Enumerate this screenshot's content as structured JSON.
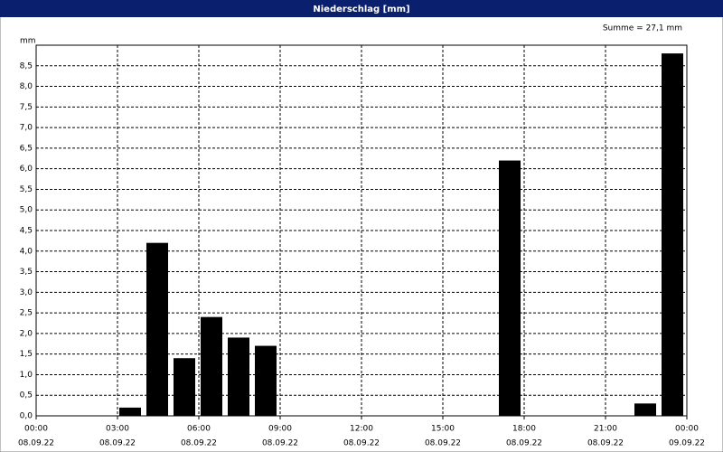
{
  "chart_data": {
    "type": "bar",
    "title": "Niederschlag [mm]",
    "y_unit": "mm",
    "annotation": "Summe = 27,1 mm",
    "x": [
      3,
      4,
      5,
      6,
      7,
      8,
      17,
      22,
      23
    ],
    "values": [
      0.2,
      4.2,
      1.4,
      2.4,
      1.9,
      1.7,
      6.2,
      0.3,
      8.8
    ],
    "color": "#000000",
    "xlim": [
      0,
      24
    ],
    "xticks": [
      {
        "value": 0,
        "label": "00:00"
      },
      {
        "value": 3,
        "label": "03:00"
      },
      {
        "value": 6,
        "label": "06:00"
      },
      {
        "value": 9,
        "label": "09:00"
      },
      {
        "value": 12,
        "label": "12:00"
      },
      {
        "value": 15,
        "label": "15:00"
      },
      {
        "value": 18,
        "label": "18:00"
      },
      {
        "value": 21,
        "label": "21:00"
      },
      {
        "value": 24,
        "label": "00:00"
      }
    ],
    "xtick_dates": [
      "08.09.22",
      "08.09.22",
      "08.09.22",
      "08.09.22",
      "08.09.22",
      "08.09.22",
      "08.09.22",
      "08.09.22",
      "09.09.22"
    ],
    "ylim": [
      0,
      9
    ],
    "yticks": [
      {
        "value": 0,
        "label": "0,0"
      },
      {
        "value": 0.5,
        "label": "0,5"
      },
      {
        "value": 1,
        "label": "1,0"
      },
      {
        "value": 1.5,
        "label": "1,5"
      },
      {
        "value": 2,
        "label": "2,0"
      },
      {
        "value": 2.5,
        "label": "2,5"
      },
      {
        "value": 3,
        "label": "3,0"
      },
      {
        "value": 3.5,
        "label": "3,5"
      },
      {
        "value": 4,
        "label": "4,0"
      },
      {
        "value": 4.5,
        "label": "4,5"
      },
      {
        "value": 5,
        "label": "5,0"
      },
      {
        "value": 5.5,
        "label": "5,5"
      },
      {
        "value": 6,
        "label": "6,0"
      },
      {
        "value": 6.5,
        "label": "6,5"
      },
      {
        "value": 7,
        "label": "7,0"
      },
      {
        "value": 7.5,
        "label": "7,5"
      },
      {
        "value": 8,
        "label": "8,0"
      },
      {
        "value": 8.5,
        "label": "8,5"
      }
    ],
    "grid": true
  }
}
